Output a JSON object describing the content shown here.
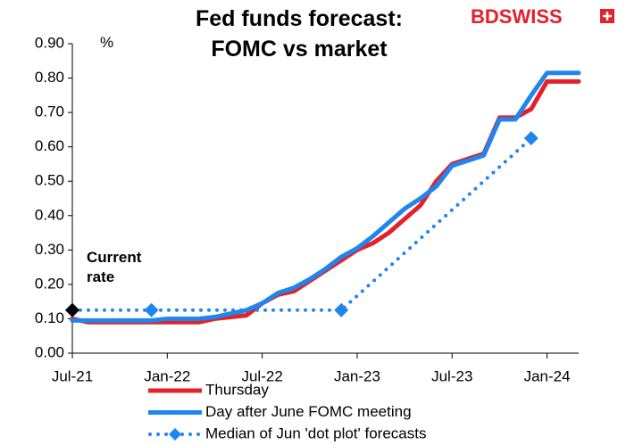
{
  "chart_data": {
    "type": "line",
    "title": "Fed funds forecast:\nFOMC vs market",
    "logo": "BDSWISS",
    "y_unit": "%",
    "x": [
      "Jul-21",
      "Aug-21",
      "Sep-21",
      "Oct-21",
      "Nov-21",
      "Dec-21",
      "Jan-22",
      "Feb-22",
      "Mar-22",
      "Apr-22",
      "May-22",
      "Jun-22",
      "Jul-22",
      "Aug-22",
      "Sep-22",
      "Oct-22",
      "Nov-22",
      "Dec-22",
      "Jan-23",
      "Feb-23",
      "Mar-23",
      "Apr-23",
      "May-23",
      "Jun-23",
      "Jul-23",
      "Aug-23",
      "Sep-23",
      "Oct-23",
      "Nov-23",
      "Dec-23",
      "Jan-24",
      "Feb-24",
      "Mar-24"
    ],
    "xlim": [
      "Jul-21",
      "Mar-24"
    ],
    "xticks": [
      "Jul-21",
      "Jan-22",
      "Jul-22",
      "Jan-23",
      "Jul-23",
      "Jan-24"
    ],
    "ylim": [
      0,
      0.9
    ],
    "yticks": [
      {
        "value": 0,
        "label": "0.00"
      },
      {
        "value": 0.1,
        "label": "0.10"
      },
      {
        "value": 0.2,
        "label": "0.20"
      },
      {
        "value": 0.3,
        "label": "0.30"
      },
      {
        "value": 0.4,
        "label": "0.40"
      },
      {
        "value": 0.5,
        "label": "0.50"
      },
      {
        "value": 0.6,
        "label": "0.60"
      },
      {
        "value": 0.7,
        "label": "0.70"
      },
      {
        "value": 0.8,
        "label": "0.80"
      },
      {
        "value": 0.9,
        "label": "0.90"
      }
    ],
    "grid": false,
    "series": [
      {
        "name": "Thursday",
        "color": "#e4202a",
        "style": "solid",
        "values": [
          0.1,
          0.09,
          0.09,
          0.09,
          0.09,
          0.09,
          0.09,
          0.09,
          0.09,
          0.1,
          0.105,
          0.11,
          0.145,
          0.17,
          0.18,
          0.21,
          0.24,
          0.27,
          0.3,
          0.32,
          0.35,
          0.39,
          0.43,
          0.5,
          0.55,
          0.565,
          0.58,
          0.685,
          0.685,
          0.71,
          0.79,
          0.79,
          0.79
        ]
      },
      {
        "name": "Day after June FOMC meeting",
        "color": "#1f86ee",
        "style": "solid",
        "values": [
          0.095,
          0.095,
          0.095,
          0.095,
          0.095,
          0.095,
          0.1,
          0.1,
          0.1,
          0.105,
          0.115,
          0.125,
          0.145,
          0.175,
          0.19,
          0.215,
          0.245,
          0.28,
          0.305,
          0.34,
          0.38,
          0.42,
          0.45,
          0.485,
          0.545,
          0.56,
          0.575,
          0.68,
          0.68,
          0.75,
          0.815,
          0.815,
          0.815
        ]
      },
      {
        "name": "Median of Jun 'dot plot' forecasts",
        "color": "#1f86ee",
        "style": "dotted",
        "x": [
          "Jul-21",
          "Dec-21",
          "Dec-22",
          "Dec-23"
        ],
        "values": [
          0.125,
          0.125,
          0.125,
          0.625
        ]
      }
    ],
    "annotations": [
      {
        "text": "Current\nrate",
        "x": "Jul-21",
        "y": 0.125,
        "color": "#000000"
      }
    ],
    "legend": "bottom"
  }
}
